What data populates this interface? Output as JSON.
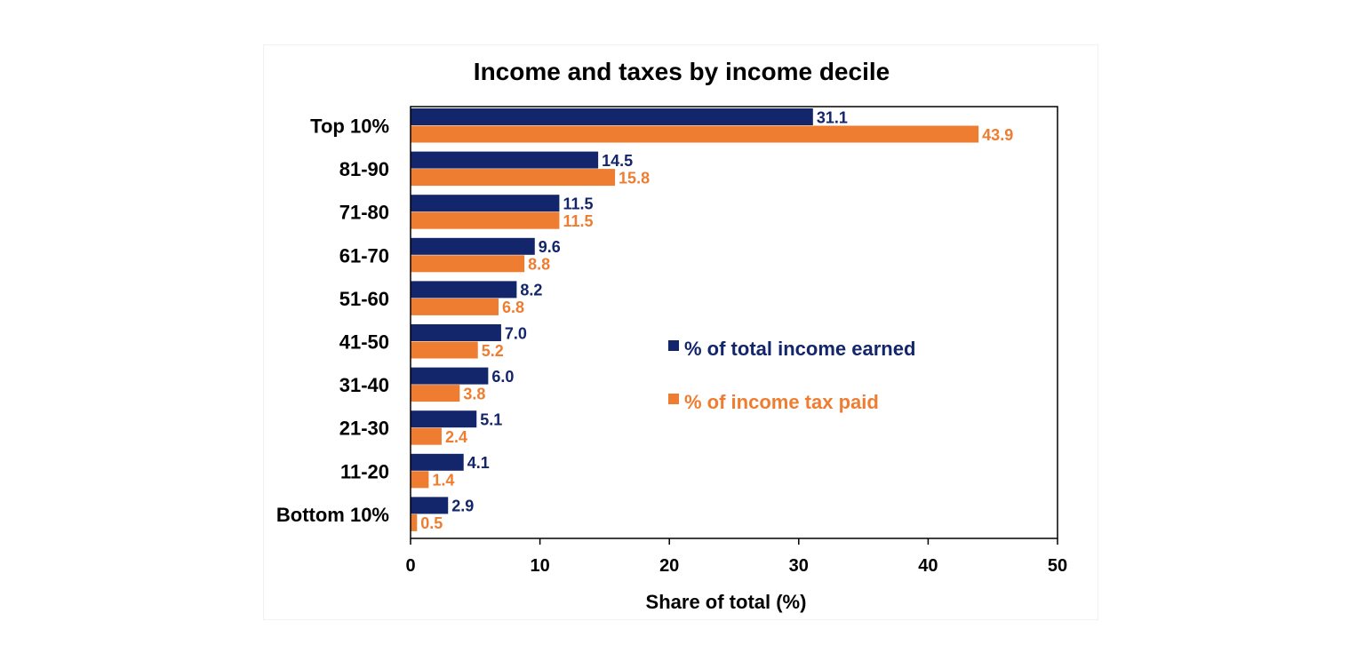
{
  "chart_data": {
    "type": "bar",
    "orientation": "horizontal",
    "title": "Income and taxes by income decile",
    "xlabel": "Share of total (%)",
    "ylabel": "",
    "xlim": [
      0,
      50
    ],
    "xticks": [
      0,
      10,
      20,
      30,
      40,
      50
    ],
    "categories": [
      "Top 10%",
      "81-90",
      "71-80",
      "61-70",
      "51-60",
      "41-50",
      "31-40",
      "21-30",
      "11-20",
      "Bottom 10%"
    ],
    "series": [
      {
        "name": "% of total income earned",
        "color": "#13266b",
        "values": [
          31.1,
          14.5,
          11.5,
          9.6,
          8.2,
          7.0,
          6.0,
          5.1,
          4.1,
          2.9
        ],
        "labels": [
          "31.1",
          "14.5",
          "11.5",
          "9.6",
          "8.2",
          "7.0",
          "6.0",
          "5.1",
          "4.1",
          "2.9"
        ]
      },
      {
        "name": "% of income tax paid",
        "color": "#ef7d31",
        "values": [
          43.9,
          15.8,
          11.5,
          8.8,
          6.8,
          5.2,
          3.8,
          2.4,
          1.4,
          0.5
        ],
        "labels": [
          "43.9",
          "15.8",
          "11.5",
          "8.8",
          "6.8",
          "5.2",
          "3.8",
          "2.4",
          "1.4",
          "0.5"
        ]
      }
    ],
    "grid": false,
    "legend_position": "right-middle"
  }
}
